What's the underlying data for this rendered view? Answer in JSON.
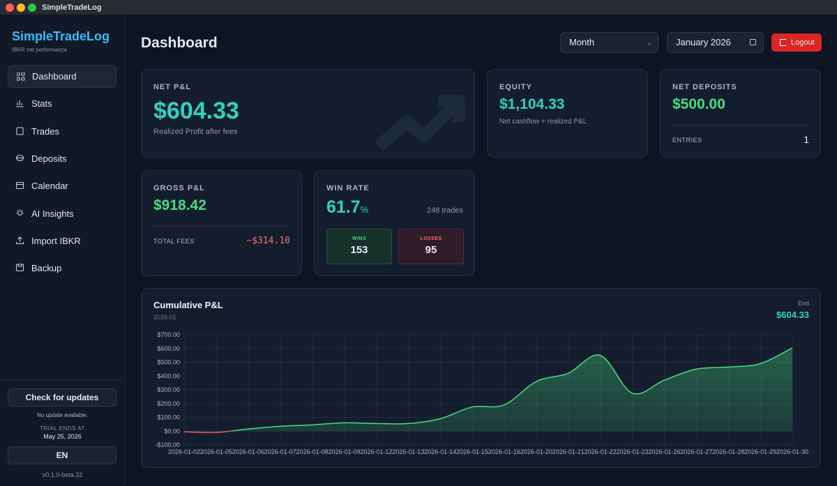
{
  "window": {
    "title": "SimpleTradeLog"
  },
  "sidebar": {
    "brand": "SimpleTradeLog",
    "tagline": "IBKR net performance",
    "nav": [
      "Dashboard",
      "Stats",
      "Trades",
      "Deposits",
      "Calendar",
      "AI Insights",
      "Import IBKR",
      "Backup"
    ],
    "update_button": "Check for updates",
    "update_status": "No update available.",
    "trial_label": "TRIAL ENDS AT",
    "trial_date": "May 25, 2026",
    "language": "EN",
    "version": "v0.1.0-beta.32"
  },
  "header": {
    "title": "Dashboard",
    "period": "Month",
    "date": "January 2026",
    "logout": "Logout"
  },
  "cards": {
    "net_pnl": {
      "label": "NET P&L",
      "value": "$604.33",
      "caption": "Realized Profit after fees"
    },
    "equity": {
      "label": "EQUITY",
      "value": "$1,104.33",
      "caption": "Net cashflow + realized P&L"
    },
    "net_deposits": {
      "label": "NET DEPOSITS",
      "value": "$500.00",
      "entries_label": "ENTRIES",
      "entries": 1
    },
    "gross_pnl": {
      "label": "GROSS P&L",
      "value": "$918.42",
      "fees_label": "TOTAL FEES",
      "fees": "−$314.10"
    },
    "win_rate": {
      "label": "WIN RATE",
      "value": 61.7,
      "unit": "%",
      "trades": "248 trades",
      "wins_label": "WINS",
      "wins": 153,
      "losses_label": "LOSSES",
      "losses": 95
    }
  },
  "chart_data": {
    "type": "line",
    "title": "Cumulative P&L",
    "subtitle": "2026-01",
    "end_label": "End",
    "end_value": "$604.33",
    "categories": [
      "2026-01-02",
      "2026-01-05",
      "2026-01-06",
      "2026-01-07",
      "2026-01-08",
      "2026-01-09",
      "2026-01-12",
      "2026-01-13",
      "2026-01-14",
      "2026-01-15",
      "2026-01-16",
      "2026-01-20",
      "2026-01-21",
      "2026-01-22",
      "2026-01-23",
      "2026-01-26",
      "2026-01-27",
      "2026-01-28",
      "2026-01-29",
      "2026-01-30"
    ],
    "values": [
      -5,
      -10,
      15,
      35,
      45,
      60,
      55,
      55,
      90,
      175,
      190,
      360,
      420,
      550,
      275,
      370,
      450,
      465,
      490,
      604.33
    ],
    "color": "#4ade80",
    "negative_color": "#f05252",
    "ylim": [
      -100,
      700
    ],
    "yticks": [
      {
        "value": -100,
        "label": "-$100.00"
      },
      {
        "value": 0,
        "label": "$0.00"
      },
      {
        "value": 100,
        "label": "$100.00"
      },
      {
        "value": 200,
        "label": "$200.00"
      },
      {
        "value": 300,
        "label": "$300.00"
      },
      {
        "value": 400,
        "label": "$400.00"
      },
      {
        "value": 500,
        "label": "$500.00"
      },
      {
        "value": 600,
        "label": "$600.00"
      },
      {
        "value": 700,
        "label": "$700.00"
      }
    ],
    "grid": true
  }
}
